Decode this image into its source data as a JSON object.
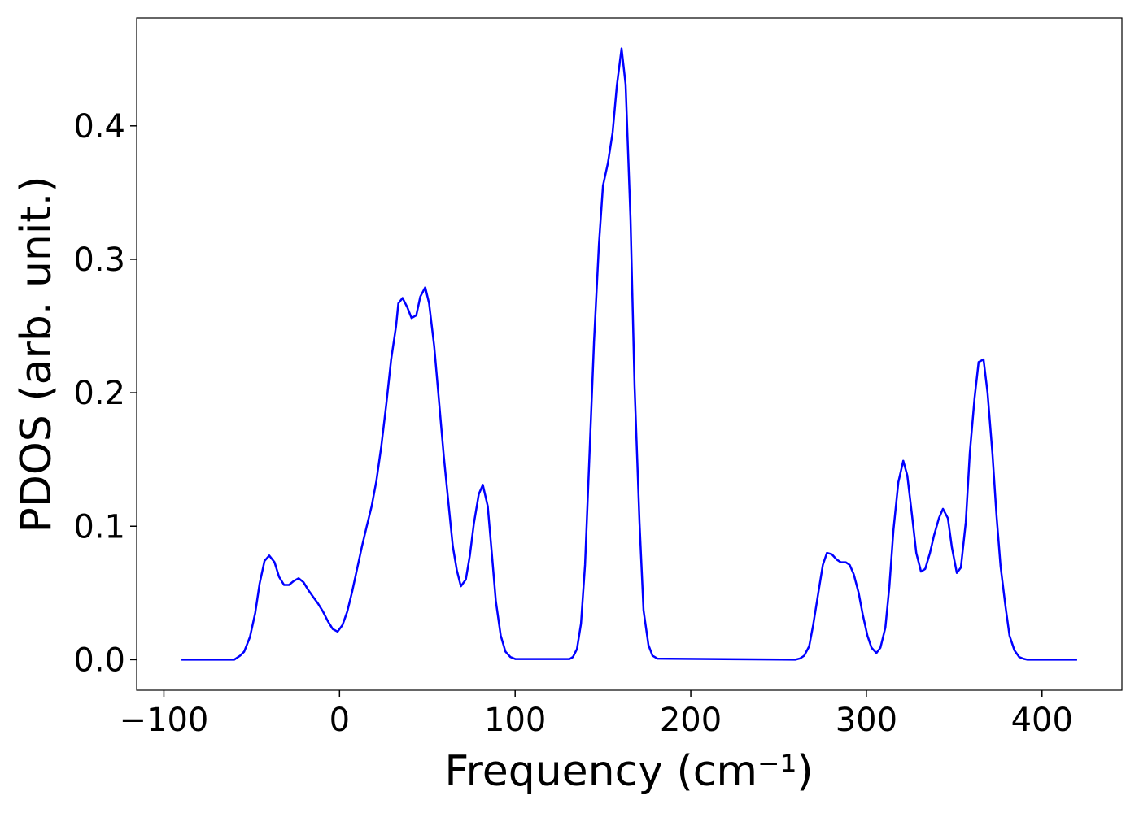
{
  "chart_data": {
    "type": "line",
    "xlabel": "Frequency (cm⁻¹)",
    "ylabel": "PDOS (arb. unit.)",
    "xlim": [
      -115.5,
      445.5
    ],
    "ylim": [
      -0.0229,
      0.4809
    ],
    "xticks": [
      {
        "value": -100,
        "label": "−100"
      },
      0,
      100,
      200,
      300,
      400
    ],
    "yticks": [
      {
        "value": 0,
        "label": "0.0"
      },
      0.1,
      0.2,
      0.3,
      0.4
    ],
    "grid": false,
    "x": [
      -90,
      -60,
      -56.6,
      -54.3,
      -51,
      -48,
      -45.5,
      -42.7,
      -40,
      -37,
      -34.4,
      -31.6,
      -28.8,
      -26,
      -23.3,
      -20.5,
      -17.7,
      -15,
      -12.2,
      -9.4,
      -6.7,
      -3.9,
      -1.1,
      1.7,
      4.4,
      7.2,
      10,
      12.8,
      15.5,
      18.3,
      21,
      23.8,
      26.6,
      29.4,
      32.2,
      33.5,
      35.9,
      38.6,
      41,
      43.7,
      46,
      48.8,
      51,
      53.9,
      56.7,
      59.4,
      62.2,
      64.5,
      66.8,
      69.1,
      71.9,
      74.2,
      76.5,
      79.3,
      81.6,
      84.4,
      86.7,
      89,
      91.8,
      94.5,
      97.3,
      100.1,
      131,
      132.9,
      135.2,
      137.5,
      139.8,
      142.1,
      144.9,
      147.7,
      150,
      152.8,
      155.5,
      157.9,
      160.6,
      162.9,
      165.7,
      168,
      170.8,
      173.1,
      175.9,
      178.2,
      181,
      259.5,
      262.3,
      264.6,
      267.4,
      269.7,
      272.5,
      275.2,
      277.5,
      280.3,
      283.1,
      285.4,
      288.2,
      290.5,
      292.8,
      295.6,
      297.9,
      300.6,
      302.9,
      305.7,
      308,
      310.8,
      313.1,
      315.4,
      318.2,
      321,
      323.3,
      326,
      328.4,
      331.1,
      333.5,
      336.2,
      338.5,
      341.3,
      343.6,
      346.4,
      348.7,
      351.5,
      353.8,
      356.6,
      358.9,
      361.6,
      363.9,
      366.7,
      369,
      371.8,
      374.1,
      376.4,
      379.2,
      381.5,
      384.3,
      387,
      389.4,
      391.7,
      420
    ],
    "series": [
      {
        "name": "PDOS",
        "color": "#0000ff",
        "values": [
          0,
          0,
          0.003,
          0.006,
          0.017,
          0.035,
          0.057,
          0.074,
          0.078,
          0.073,
          0.062,
          0.056,
          0.056,
          0.059,
          0.061,
          0.058,
          0.052,
          0.047,
          0.042,
          0.036,
          0.029,
          0.023,
          0.021,
          0.026,
          0.036,
          0.051,
          0.068,
          0.085,
          0.1,
          0.115,
          0.134,
          0.16,
          0.191,
          0.225,
          0.25,
          0.267,
          0.271,
          0.264,
          0.256,
          0.258,
          0.272,
          0.279,
          0.267,
          0.235,
          0.193,
          0.152,
          0.115,
          0.085,
          0.067,
          0.055,
          0.06,
          0.078,
          0.102,
          0.124,
          0.131,
          0.115,
          0.08,
          0.044,
          0.018,
          0.006,
          0.002,
          0.0005,
          0.0005,
          0.002,
          0.008,
          0.027,
          0.071,
          0.146,
          0.238,
          0.311,
          0.355,
          0.372,
          0.395,
          0.43,
          0.458,
          0.431,
          0.33,
          0.205,
          0.103,
          0.037,
          0.011,
          0.003,
          0.0008,
          0,
          0.001,
          0.003,
          0.01,
          0.026,
          0.049,
          0.071,
          0.08,
          0.079,
          0.075,
          0.073,
          0.073,
          0.071,
          0.064,
          0.05,
          0.034,
          0.018,
          0.009,
          0.005,
          0.009,
          0.024,
          0.055,
          0.097,
          0.133,
          0.149,
          0.138,
          0.108,
          0.08,
          0.066,
          0.068,
          0.08,
          0.093,
          0.106,
          0.113,
          0.106,
          0.084,
          0.065,
          0.069,
          0.103,
          0.155,
          0.196,
          0.223,
          0.225,
          0.2,
          0.154,
          0.108,
          0.07,
          0.04,
          0.018,
          0.007,
          0.002,
          0.0007,
          0,
          0
        ]
      }
    ]
  }
}
